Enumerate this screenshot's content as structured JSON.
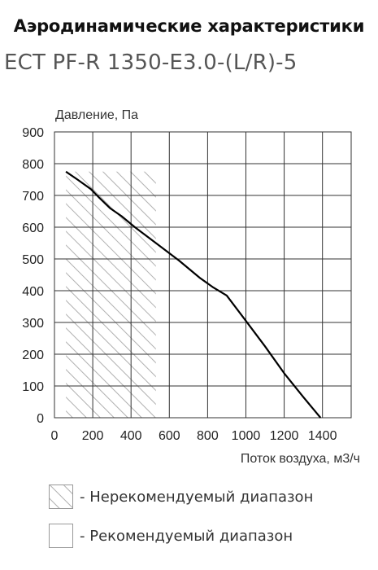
{
  "header": {
    "title": "Аэродинамические характеристики",
    "model": "ECT PF-R 1350-E3.0-(L/R)-5"
  },
  "chart_data": {
    "type": "line",
    "ylabel": "Давление, Па",
    "xlabel": "Поток воздуха, м3/ч",
    "xlim": [
      0,
      1550
    ],
    "ylim": [
      0,
      900
    ],
    "x_ticks": [
      "0",
      "200",
      "400",
      "600",
      "800",
      "1000",
      "1200",
      "1400"
    ],
    "x_tick_values": [
      0,
      200,
      400,
      600,
      800,
      1000,
      1200,
      1400
    ],
    "y_ticks": [
      "0",
      "100",
      "200",
      "300",
      "400",
      "500",
      "600",
      "700",
      "800",
      "900"
    ],
    "y_tick_values": [
      0,
      100,
      200,
      300,
      400,
      500,
      600,
      700,
      800,
      900
    ],
    "grid": true,
    "series": [
      {
        "x": [
          60,
          120,
          190,
          230,
          290,
          350,
          420,
          530,
          650,
          760,
          830,
          900,
          1000,
          1100,
          1200,
          1300,
          1390
        ],
        "y": [
          775,
          750,
          720,
          695,
          660,
          635,
          600,
          550,
          495,
          440,
          410,
          385,
          305,
          225,
          140,
          65,
          0
        ],
        "color": "#000000"
      }
    ],
    "hatched_region": {
      "x": [
        60,
        530
      ],
      "y_max": 775
    },
    "legend": [
      {
        "label": "- Нерекомендуемый диапазон",
        "style": "hatched"
      },
      {
        "label": "- Рекомендуемый диапазон",
        "style": "empty"
      }
    ]
  }
}
